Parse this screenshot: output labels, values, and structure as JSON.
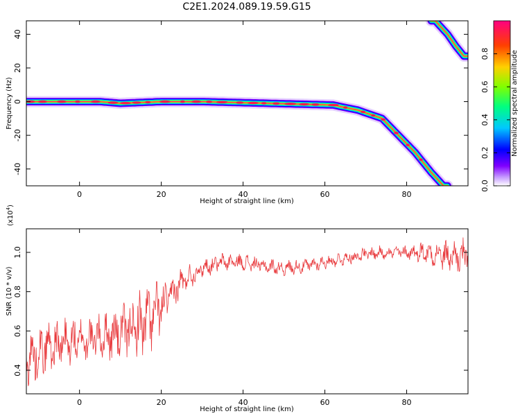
{
  "title": "C2E1.2024.089.19.59.G15",
  "chart_data": [
    {
      "type": "heatmap",
      "xlabel": "Height of straight line (km)",
      "ylabel": "Frequency (Hz)",
      "xlim": [
        -13,
        95
      ],
      "ylim": [
        -50,
        48
      ],
      "xticks": [
        0,
        20,
        40,
        60,
        80
      ],
      "xtick_labels": [
        "0",
        "20",
        "40",
        "60",
        "80"
      ],
      "yticks": [
        -40,
        -20,
        0,
        20,
        40
      ],
      "ytick_labels": [
        "-40",
        "-20",
        "0",
        "20",
        "40"
      ],
      "ridge": [
        {
          "x": -13,
          "y": 0
        },
        {
          "x": 5,
          "y": 0
        },
        {
          "x": 10,
          "y": -1
        },
        {
          "x": 20,
          "y": 0
        },
        {
          "x": 30,
          "y": 0
        },
        {
          "x": 62,
          "y": -2
        },
        {
          "x": 68,
          "y": -5
        },
        {
          "x": 74,
          "y": -10
        },
        {
          "x": 78,
          "y": -20
        },
        {
          "x": 82,
          "y": -30
        },
        {
          "x": 86,
          "y": -42
        },
        {
          "x": 89,
          "y": -50
        }
      ],
      "ridge2": [
        {
          "x": 87,
          "y": 48
        },
        {
          "x": 90,
          "y": 40
        },
        {
          "x": 92,
          "y": 33
        },
        {
          "x": 94,
          "y": 27
        }
      ],
      "colorbar": {
        "label": "Normalized spectral amplitude",
        "ticks": [
          0.0,
          0.2,
          0.4,
          0.6,
          0.8
        ],
        "tick_labels": [
          "0.0",
          "0.2",
          "0.4",
          "0.6",
          "0.8"
        ],
        "colors": [
          "#ffffff",
          "#8000ff",
          "#0000ff",
          "#00c8ff",
          "#00ff80",
          "#80ff00",
          "#ffd000",
          "#ff4000",
          "#ff0080"
        ]
      }
    },
    {
      "type": "line",
      "xlabel": "Height of straight line (km)",
      "ylabel": "SNR (10 * v/v)",
      "scale_label_base": "(x10",
      "scale_label_exp": "4",
      "scale_label_close": ")",
      "xlim": [
        -13,
        95
      ],
      "ylim": [
        0.28,
        1.12
      ],
      "xticks": [
        0,
        20,
        40,
        60,
        80
      ],
      "xtick_labels": [
        "0",
        "20",
        "40",
        "60",
        "80"
      ],
      "yticks": [
        0.4,
        0.6,
        0.8,
        1.0
      ],
      "ytick_labels": [
        "0.4",
        "0.6",
        "0.8",
        "1.0"
      ],
      "color": "#e8383b",
      "series": [
        {
          "trend": [
            {
              "x": -13,
              "y": 0.45
            },
            {
              "x": -8,
              "y": 0.52
            },
            {
              "x": 0,
              "y": 0.55
            },
            {
              "x": 8,
              "y": 0.58
            },
            {
              "x": 14,
              "y": 0.62
            },
            {
              "x": 17,
              "y": 0.66
            },
            {
              "x": 20,
              "y": 0.72
            },
            {
              "x": 25,
              "y": 0.85
            },
            {
              "x": 30,
              "y": 0.92
            },
            {
              "x": 35,
              "y": 0.95
            },
            {
              "x": 40,
              "y": 0.95
            },
            {
              "x": 45,
              "y": 0.93
            },
            {
              "x": 50,
              "y": 0.92
            },
            {
              "x": 55,
              "y": 0.93
            },
            {
              "x": 60,
              "y": 0.95
            },
            {
              "x": 65,
              "y": 0.97
            },
            {
              "x": 70,
              "y": 0.99
            },
            {
              "x": 75,
              "y": 1.0
            },
            {
              "x": 80,
              "y": 1.0
            },
            {
              "x": 85,
              "y": 1.0
            },
            {
              "x": 90,
              "y": 0.98
            },
            {
              "x": 95,
              "y": 0.98
            }
          ],
          "noise": [
            {
              "x": -13,
              "y": 0.12
            },
            {
              "x": 5,
              "y": 0.1
            },
            {
              "x": 12,
              "y": 0.13
            },
            {
              "x": 17,
              "y": 0.16
            },
            {
              "x": 22,
              "y": 0.08
            },
            {
              "x": 30,
              "y": 0.04
            },
            {
              "x": 60,
              "y": 0.03
            },
            {
              "x": 80,
              "y": 0.03
            },
            {
              "x": 87,
              "y": 0.06
            },
            {
              "x": 95,
              "y": 0.08
            }
          ]
        }
      ]
    }
  ]
}
